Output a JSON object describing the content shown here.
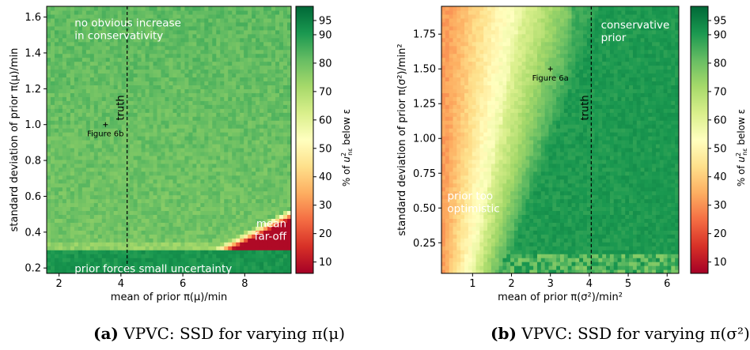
{
  "colorbar": {
    "ticks": [
      10,
      20,
      30,
      40,
      50,
      60,
      70,
      80,
      90,
      95
    ],
    "range": [
      6,
      100
    ],
    "label_prefix": "% of ",
    "label_suffix": " below ε",
    "colors_low_to_high": [
      "#a50026",
      "#d73027",
      "#f46d43",
      "#fdae61",
      "#fee08b",
      "#ffffbf",
      "#d9ef8b",
      "#a6d96a",
      "#66bd63",
      "#1a9850",
      "#006837"
    ]
  },
  "chart_data": [
    {
      "type": "heatmap",
      "panel": "a",
      "xlabel": "mean of prior π(μ)/min",
      "ylabel": "standard deviation of prior π(μ)/min",
      "xlim": [
        1.6,
        9.5
      ],
      "ylim": [
        0.17,
        1.66
      ],
      "xticks": [
        2,
        4,
        6,
        8
      ],
      "yticks": [
        0.2,
        0.4,
        0.6,
        0.8,
        1.0,
        1.2,
        1.4,
        1.6
      ],
      "ytick_labels": [
        "0.2",
        "0.4",
        "0.6",
        "0.8",
        "1.0",
        "1.2",
        "1.4",
        "1.6"
      ],
      "truth_x": 4.2,
      "truth_label": "truth",
      "marker": {
        "x": 3.5,
        "y": 1.0,
        "label": "Figure 6b"
      },
      "annotations": [
        {
          "x": 2.5,
          "y": 1.6,
          "lines": [
            "no obvious increase",
            "in conservativity"
          ],
          "anchor": "start"
        },
        {
          "x": 9.35,
          "y": 0.48,
          "lines": [
            "mean",
            "far-off"
          ],
          "anchor": "end"
        },
        {
          "x": 2.5,
          "y": 0.23,
          "lines": [
            "prior forces small uncertainty"
          ],
          "anchor": "start"
        }
      ],
      "caption_letter": "(a)",
      "caption_text": "VPVC: SSD for varying π(μ)"
    },
    {
      "type": "heatmap",
      "panel": "b",
      "xlabel": "mean of prior π(σ²)/min²",
      "ylabel": "standard deviation of prior π(σ²)/min²",
      "xlim": [
        0.2,
        6.3
      ],
      "ylim": [
        0.03,
        1.95
      ],
      "xticks": [
        1,
        2,
        3,
        4,
        5,
        6
      ],
      "yticks": [
        0.25,
        0.5,
        0.75,
        1.0,
        1.25,
        1.5,
        1.75
      ],
      "ytick_labels": [
        "0.25",
        "0.50",
        "0.75",
        "1.00",
        "1.25",
        "1.50",
        "1.75"
      ],
      "truth_x": 4.05,
      "truth_label": "truth",
      "marker": {
        "x": 3.0,
        "y": 1.5,
        "label": "Figure 6a"
      },
      "annotations": [
        {
          "x": 4.3,
          "y": 1.86,
          "lines": [
            "conservative",
            "prior"
          ],
          "anchor": "start"
        },
        {
          "x": 0.35,
          "y": 0.63,
          "lines": [
            "prior too",
            "optimistic"
          ],
          "anchor": "start"
        }
      ],
      "caption_letter": "(b)",
      "caption_text": "VPVC: SSD for varying π(σ²)"
    }
  ]
}
